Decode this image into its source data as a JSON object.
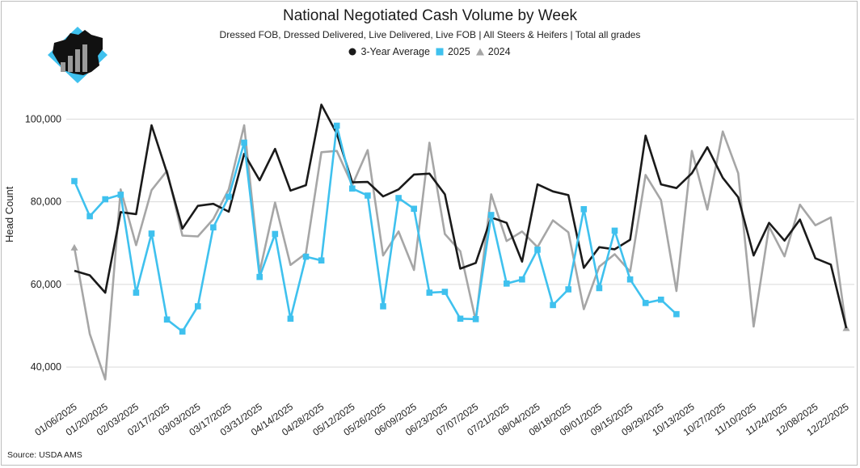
{
  "chart_data": {
    "type": "line",
    "title": "National Negotiated Cash Volume by Week",
    "subtitle": "Dressed FOB, Dressed Delivered, Live Delivered, Live FOB | All Steers & Heifers | Total all grades",
    "ylabel": "Head Count",
    "source": "Source: USDA AMS",
    "ylim": [
      32000,
      112000
    ],
    "yticks": [
      40000,
      60000,
      80000,
      100000
    ],
    "ytick_labels": [
      "40,000",
      "60,000",
      "80,000",
      "100,000"
    ],
    "grid": "horizontal",
    "legend": "top-center",
    "x_tick_labels": [
      "01/06/2025",
      "01/20/2025",
      "02/03/2025",
      "02/17/2025",
      "03/03/2025",
      "03/17/2025",
      "03/31/2025",
      "04/14/2025",
      "04/28/2025",
      "05/12/2025",
      "05/26/2025",
      "06/09/2025",
      "06/23/2025",
      "07/07/2025",
      "07/21/2025",
      "08/04/2025",
      "08/18/2025",
      "09/01/2025",
      "09/15/2025",
      "09/29/2025",
      "10/13/2025",
      "10/27/2025",
      "11/10/2025",
      "11/24/2025",
      "12/08/2025",
      "12/22/2025"
    ],
    "series": [
      {
        "name": "3-Year Average",
        "color": "#1a1a1a",
        "marker": "circle",
        "values": [
          63300,
          62200,
          58000,
          77500,
          77000,
          98500,
          87000,
          73500,
          79000,
          79500,
          77600,
          91600,
          85200,
          92800,
          82700,
          84000,
          103500,
          96500,
          84700,
          84800,
          81300,
          83000,
          86600,
          86800,
          81800,
          63800,
          65200,
          76200,
          74900,
          65500,
          84200,
          82500,
          81600,
          64000,
          69000,
          68500,
          70800,
          96000,
          84200,
          83300,
          86900,
          93200,
          85800,
          81100,
          67000,
          74900,
          70600,
          75700,
          66300,
          64800,
          49400
        ]
      },
      {
        "name": "2025",
        "color": "#3fc1ee",
        "marker": "square",
        "values": [
          85000,
          76500,
          80600,
          81700,
          58000,
          72300,
          51500,
          48600,
          54700,
          73800,
          81200,
          94300,
          61800,
          72200,
          51700,
          66700,
          65800,
          98400,
          83200,
          81500,
          54700,
          80900,
          78300,
          58000,
          58200,
          51700,
          51600,
          76800,
          60200,
          61200,
          68400,
          55000,
          58800,
          78200,
          59100,
          73000,
          61200,
          55500,
          56300,
          52800,
          null,
          null,
          null,
          null,
          null,
          null,
          null,
          null,
          null,
          null,
          null
        ]
      },
      {
        "name": "2024",
        "color": "#a6a6a6",
        "marker": "triangle",
        "values": [
          68900,
          48000,
          37000,
          83000,
          69500,
          82800,
          87500,
          71800,
          71600,
          75800,
          83000,
          98500,
          63000,
          79800,
          64700,
          67500,
          92000,
          92300,
          84000,
          92500,
          67000,
          72800,
          63500,
          94300,
          72200,
          68000,
          51200,
          81800,
          70500,
          72800,
          69000,
          75500,
          72600,
          54000,
          64300,
          67300,
          63100,
          86500,
          80400,
          58400,
          92300,
          78100,
          97000,
          86900,
          49800,
          74000,
          66800,
          79300,
          74300,
          76200,
          49400
        ]
      }
    ]
  }
}
